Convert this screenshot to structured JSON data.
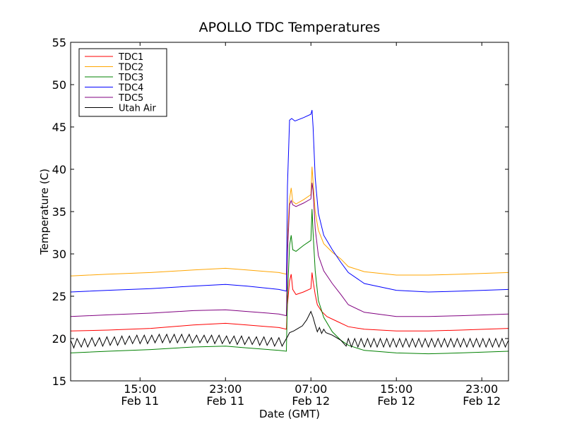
{
  "chart_data": {
    "type": "line",
    "title": "APOLLO TDC Temperatures",
    "xlabel": "Date (GMT)",
    "ylabel": "Temperature (C)",
    "ylim": [
      15,
      55
    ],
    "xlim_hours": [
      -3.5,
      37.5
    ],
    "yticks": [
      15,
      20,
      25,
      30,
      35,
      40,
      45,
      50,
      55
    ],
    "xticks": [
      {
        "hour": 3,
        "time": "15:00",
        "date": "Feb 11"
      },
      {
        "hour": 11,
        "time": "23:00",
        "date": "Feb 11"
      },
      {
        "hour": 19,
        "time": "07:00",
        "date": "Feb 12"
      },
      {
        "hour": 27,
        "time": "15:00",
        "date": "Feb 12"
      },
      {
        "hour": 35,
        "time": "23:00",
        "date": "Feb 12"
      }
    ],
    "x_unit": "hours since 12:00 Feb 11 (GMT)",
    "legend_position": "top-left",
    "series": [
      {
        "name": "TDC1",
        "color": "#ff0000",
        "points": [
          [
            -3.5,
            20.9
          ],
          [
            0,
            21.0
          ],
          [
            4,
            21.2
          ],
          [
            8,
            21.6
          ],
          [
            11,
            21.8
          ],
          [
            13,
            21.6
          ],
          [
            16,
            21.3
          ],
          [
            16.7,
            21.1
          ],
          [
            16.8,
            24.0
          ],
          [
            17.0,
            26.8
          ],
          [
            17.15,
            27.6
          ],
          [
            17.3,
            25.8
          ],
          [
            17.6,
            25.2
          ],
          [
            18.3,
            25.5
          ],
          [
            19.0,
            25.9
          ],
          [
            19.1,
            27.8
          ],
          [
            19.2,
            26.8
          ],
          [
            19.4,
            25.2
          ],
          [
            19.6,
            24.0
          ],
          [
            20.0,
            23.2
          ],
          [
            20.5,
            22.6
          ],
          [
            21.5,
            22.0
          ],
          [
            22.5,
            21.4
          ],
          [
            24,
            21.1
          ],
          [
            27,
            20.9
          ],
          [
            30,
            20.9
          ],
          [
            33,
            21.0
          ],
          [
            37.5,
            21.2
          ]
        ]
      },
      {
        "name": "TDC2",
        "color": "#ffa500",
        "points": [
          [
            -3.5,
            27.4
          ],
          [
            0,
            27.6
          ],
          [
            4,
            27.8
          ],
          [
            8,
            28.1
          ],
          [
            11,
            28.3
          ],
          [
            13,
            28.1
          ],
          [
            16,
            27.8
          ],
          [
            16.7,
            27.6
          ],
          [
            16.8,
            32.0
          ],
          [
            17.0,
            36.5
          ],
          [
            17.15,
            37.8
          ],
          [
            17.3,
            36.2
          ],
          [
            17.6,
            35.9
          ],
          [
            18.3,
            36.4
          ],
          [
            19.0,
            37.0
          ],
          [
            19.1,
            40.3
          ],
          [
            19.2,
            38.5
          ],
          [
            19.4,
            35.0
          ],
          [
            19.7,
            32.8
          ],
          [
            20.2,
            31.2
          ],
          [
            21.0,
            30.2
          ],
          [
            21.8,
            29.4
          ],
          [
            22.5,
            28.5
          ],
          [
            24,
            27.9
          ],
          [
            27,
            27.5
          ],
          [
            30,
            27.5
          ],
          [
            33,
            27.6
          ],
          [
            37.5,
            27.8
          ]
        ]
      },
      {
        "name": "TDC3",
        "color": "#008000",
        "points": [
          [
            -3.5,
            18.3
          ],
          [
            0,
            18.5
          ],
          [
            4,
            18.7
          ],
          [
            8,
            19.0
          ],
          [
            11,
            19.1
          ],
          [
            13,
            18.9
          ],
          [
            16,
            18.6
          ],
          [
            16.7,
            18.5
          ],
          [
            16.8,
            25.0
          ],
          [
            17.0,
            31.0
          ],
          [
            17.15,
            32.2
          ],
          [
            17.3,
            30.5
          ],
          [
            17.6,
            30.3
          ],
          [
            18.3,
            31.0
          ],
          [
            19.0,
            31.6
          ],
          [
            19.1,
            35.3
          ],
          [
            19.2,
            32.5
          ],
          [
            19.4,
            28.0
          ],
          [
            19.7,
            24.5
          ],
          [
            20.2,
            22.5
          ],
          [
            21.0,
            20.8
          ],
          [
            21.8,
            19.8
          ],
          [
            22.5,
            19.2
          ],
          [
            24,
            18.6
          ],
          [
            27,
            18.3
          ],
          [
            30,
            18.2
          ],
          [
            33,
            18.3
          ],
          [
            37.5,
            18.5
          ]
        ]
      },
      {
        "name": "TDC4",
        "color": "#0000ff",
        "points": [
          [
            -3.5,
            25.5
          ],
          [
            0,
            25.7
          ],
          [
            4,
            25.9
          ],
          [
            8,
            26.2
          ],
          [
            11,
            26.4
          ],
          [
            13,
            26.2
          ],
          [
            16,
            25.8
          ],
          [
            16.7,
            25.6
          ],
          [
            16.8,
            38.0
          ],
          [
            17.0,
            45.8
          ],
          [
            17.2,
            46.0
          ],
          [
            17.5,
            45.7
          ],
          [
            18.3,
            46.1
          ],
          [
            19.0,
            46.5
          ],
          [
            19.1,
            47.0
          ],
          [
            19.2,
            45.0
          ],
          [
            19.4,
            39.0
          ],
          [
            19.7,
            34.8
          ],
          [
            20.2,
            32.2
          ],
          [
            21.0,
            30.5
          ],
          [
            21.8,
            29.0
          ],
          [
            22.5,
            27.8
          ],
          [
            24,
            26.5
          ],
          [
            27,
            25.7
          ],
          [
            30,
            25.5
          ],
          [
            33,
            25.6
          ],
          [
            37.5,
            25.8
          ]
        ]
      },
      {
        "name": "TDC5",
        "color": "#800080",
        "points": [
          [
            -3.5,
            22.6
          ],
          [
            0,
            22.8
          ],
          [
            4,
            23.0
          ],
          [
            8,
            23.3
          ],
          [
            11,
            23.4
          ],
          [
            13,
            23.2
          ],
          [
            16,
            22.9
          ],
          [
            16.7,
            22.7
          ],
          [
            16.8,
            30.0
          ],
          [
            17.0,
            35.8
          ],
          [
            17.15,
            36.3
          ],
          [
            17.3,
            35.8
          ],
          [
            17.6,
            35.6
          ],
          [
            18.3,
            36.0
          ],
          [
            19.0,
            36.5
          ],
          [
            19.1,
            38.4
          ],
          [
            19.2,
            37.5
          ],
          [
            19.4,
            33.0
          ],
          [
            19.7,
            29.8
          ],
          [
            20.2,
            28.0
          ],
          [
            21.0,
            26.5
          ],
          [
            21.8,
            25.2
          ],
          [
            22.5,
            24.0
          ],
          [
            24,
            23.1
          ],
          [
            27,
            22.6
          ],
          [
            30,
            22.6
          ],
          [
            33,
            22.7
          ],
          [
            37.5,
            22.9
          ]
        ]
      },
      {
        "name": "Utah Air",
        "color": "#000000",
        "points": [
          [
            -3.5,
            19.8
          ],
          [
            -3.2,
            18.9
          ],
          [
            -2.9,
            20.0
          ],
          [
            -2.5,
            19.0
          ],
          [
            -2.2,
            20.0
          ],
          [
            -1.9,
            19.0
          ],
          [
            -1.5,
            20.1
          ],
          [
            -1.2,
            19.1
          ],
          [
            -0.8,
            20.1
          ],
          [
            -0.5,
            19.1
          ],
          [
            -0.1,
            20.2
          ],
          [
            0.2,
            19.2
          ],
          [
            0.6,
            20.2
          ],
          [
            0.9,
            19.2
          ],
          [
            1.3,
            20.3
          ],
          [
            1.6,
            19.3
          ],
          [
            2.0,
            20.3
          ],
          [
            2.3,
            19.4
          ],
          [
            2.7,
            20.4
          ],
          [
            3.0,
            19.4
          ],
          [
            3.4,
            20.4
          ],
          [
            3.7,
            19.4
          ],
          [
            4.1,
            20.4
          ],
          [
            4.4,
            19.5
          ],
          [
            4.8,
            20.5
          ],
          [
            5.1,
            19.5
          ],
          [
            5.5,
            20.5
          ],
          [
            5.8,
            19.5
          ],
          [
            6.2,
            20.5
          ],
          [
            6.5,
            19.5
          ],
          [
            6.9,
            20.5
          ],
          [
            7.2,
            19.5
          ],
          [
            7.6,
            20.5
          ],
          [
            7.9,
            19.5
          ],
          [
            8.3,
            20.4
          ],
          [
            8.6,
            19.5
          ],
          [
            9.0,
            20.4
          ],
          [
            9.3,
            19.5
          ],
          [
            9.7,
            20.4
          ],
          [
            10.0,
            19.4
          ],
          [
            10.4,
            20.4
          ],
          [
            10.7,
            19.4
          ],
          [
            11.1,
            20.3
          ],
          [
            11.4,
            19.4
          ],
          [
            11.8,
            20.3
          ],
          [
            12.1,
            19.3
          ],
          [
            12.5,
            20.3
          ],
          [
            12.8,
            19.3
          ],
          [
            13.2,
            20.2
          ],
          [
            13.5,
            19.3
          ],
          [
            13.9,
            20.2
          ],
          [
            14.2,
            19.2
          ],
          [
            14.6,
            20.2
          ],
          [
            14.9,
            19.2
          ],
          [
            15.3,
            20.1
          ],
          [
            15.6,
            19.1
          ],
          [
            16.0,
            20.1
          ],
          [
            16.3,
            19.1
          ],
          [
            16.7,
            20.0
          ],
          [
            16.8,
            20.2
          ],
          [
            17.0,
            20.7
          ],
          [
            17.4,
            20.9
          ],
          [
            17.8,
            21.2
          ],
          [
            18.2,
            21.5
          ],
          [
            18.6,
            22.2
          ],
          [
            19.0,
            23.2
          ],
          [
            19.2,
            22.5
          ],
          [
            19.4,
            21.6
          ],
          [
            19.6,
            20.8
          ],
          [
            19.8,
            21.3
          ],
          [
            20.0,
            20.6
          ],
          [
            20.2,
            21.1
          ],
          [
            20.4,
            20.7
          ],
          [
            21.0,
            20.4
          ],
          [
            21.8,
            19.8
          ],
          [
            22.3,
            19.1
          ],
          [
            22.5,
            20.0
          ],
          [
            22.8,
            19.0
          ],
          [
            23.1,
            20.0
          ],
          [
            23.4,
            19.0
          ],
          [
            23.7,
            20.0
          ],
          [
            24.0,
            19.0
          ],
          [
            24.3,
            20.0
          ],
          [
            24.6,
            19.0
          ],
          [
            24.9,
            20.0
          ],
          [
            25.2,
            19.0
          ],
          [
            25.5,
            20.0
          ],
          [
            25.8,
            19.0
          ],
          [
            26.1,
            20.0
          ],
          [
            26.4,
            19.0
          ],
          [
            26.7,
            20.0
          ],
          [
            27.0,
            19.0
          ],
          [
            27.3,
            20.0
          ],
          [
            27.6,
            19.0
          ],
          [
            27.9,
            20.0
          ],
          [
            28.2,
            19.0
          ],
          [
            28.5,
            20.0
          ],
          [
            28.8,
            19.0
          ],
          [
            29.1,
            20.0
          ],
          [
            29.4,
            19.0
          ],
          [
            29.7,
            20.0
          ],
          [
            30.0,
            19.0
          ],
          [
            30.3,
            20.0
          ],
          [
            30.6,
            19.0
          ],
          [
            30.9,
            20.0
          ],
          [
            31.2,
            19.0
          ],
          [
            31.5,
            20.0
          ],
          [
            31.8,
            19.0
          ],
          [
            32.1,
            20.0
          ],
          [
            32.4,
            19.0
          ],
          [
            32.7,
            20.0
          ],
          [
            33.0,
            19.0
          ],
          [
            33.3,
            20.0
          ],
          [
            33.6,
            19.0
          ],
          [
            33.9,
            20.0
          ],
          [
            34.2,
            19.0
          ],
          [
            34.5,
            20.0
          ],
          [
            34.8,
            19.0
          ],
          [
            35.1,
            20.0
          ],
          [
            35.4,
            19.0
          ],
          [
            35.7,
            20.0
          ],
          [
            36.0,
            19.0
          ],
          [
            36.3,
            20.0
          ],
          [
            36.6,
            19.0
          ],
          [
            36.9,
            20.0
          ],
          [
            37.2,
            19.0
          ],
          [
            37.5,
            19.8
          ]
        ]
      }
    ]
  }
}
